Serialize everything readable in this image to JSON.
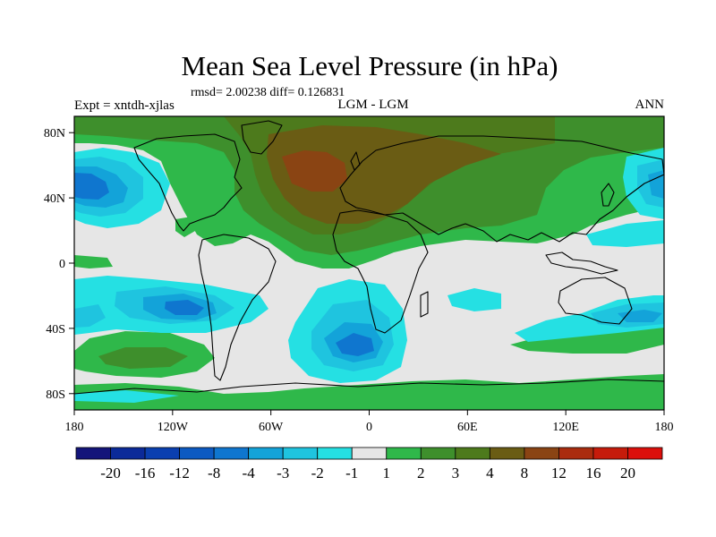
{
  "title": "Mean Sea Level Pressure (in hPa)",
  "stats_line": "rmsd= 2.00238 diff= 0.126831",
  "experiment_label": "Expt = xntdh-xjlas",
  "center_label": "LGM - LGM",
  "period_label": "ANN",
  "y_axis_labels": [
    "80N",
    "40N",
    "0",
    "40S",
    "80S"
  ],
  "x_axis_labels": [
    "180",
    "120W",
    "60W",
    "0",
    "60E",
    "120E",
    "180"
  ],
  "colorbar": {
    "labels": [
      "-20",
      "-16",
      "-12",
      "-8",
      "-4",
      "-3",
      "-2",
      "-1",
      "1",
      "2",
      "3",
      "4",
      "8",
      "12",
      "16",
      "20"
    ],
    "colors": [
      "#13157a",
      "#0b2a99",
      "#0a3fb0",
      "#0c5ac2",
      "#0f76cf",
      "#13a3d9",
      "#1fc4df",
      "#25e0e3",
      "#e6e6e6",
      "#2fb84a",
      "#3e8f2c",
      "#4d7a1c",
      "#6a5c14",
      "#8a4413",
      "#aa2c0e",
      "#c61b0b",
      "#dc0f0b"
    ]
  },
  "chart_data": {
    "type": "heatmap",
    "title": "Mean Sea Level Pressure (in hPa)",
    "variable": "Mean Sea Level Pressure difference",
    "units": "hPa",
    "lon_range": [
      -180,
      180
    ],
    "lat_range": [
      -90,
      90
    ],
    "contour_levels": [
      -20,
      -16,
      -12,
      -8,
      -4,
      -3,
      -2,
      -1,
      1,
      2,
      3,
      4,
      8,
      12,
      16,
      20
    ],
    "rmsd": 2.00238,
    "diff": 0.126831
  }
}
